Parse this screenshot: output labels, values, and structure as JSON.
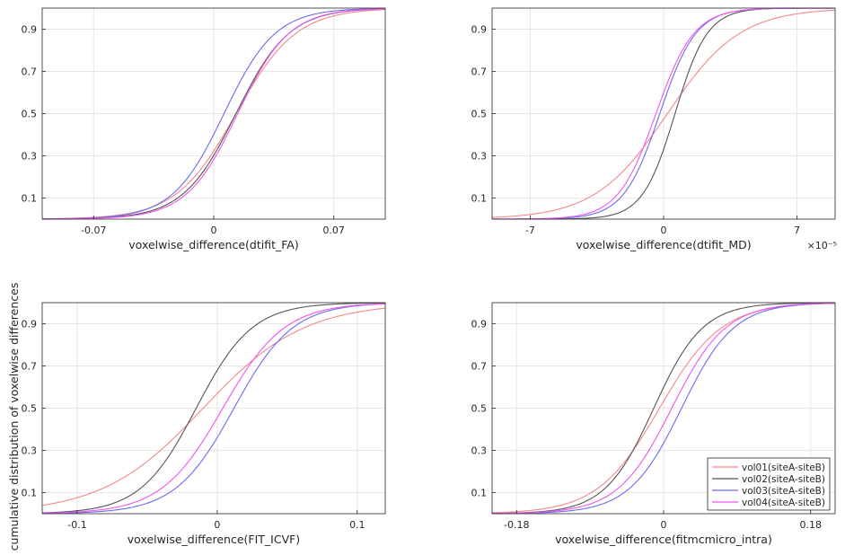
{
  "figure": {
    "ylabel": "cumulative distribution of voxelwise differences"
  },
  "legend": {
    "placement": "bottom-right of lower-right panel",
    "entries": [
      {
        "label": "vol01(siteA-siteB)",
        "color": "#f08a8a"
      },
      {
        "label": "vol02(siteA-siteB)",
        "color": "#555555"
      },
      {
        "label": "vol03(siteA-siteB)",
        "color": "#6b6bf0"
      },
      {
        "label": "vol04(siteA-siteB)",
        "color": "#ee55ee"
      }
    ]
  },
  "chart_data": [
    {
      "type": "line",
      "xlabel": "voxelwise_difference(dtifit_FA)",
      "exponent": "",
      "xlim": [
        -0.1,
        0.1
      ],
      "ylim": [
        0,
        1
      ],
      "xticks": [
        -0.07,
        0,
        0.07
      ],
      "xtick_labels": [
        "-0.07",
        "0",
        "0.07"
      ],
      "yticks": [
        0.1,
        0.3,
        0.5,
        0.7,
        0.9
      ],
      "ytick_labels": [
        "0.1",
        "0.3",
        "0.5",
        "0.7",
        "0.9"
      ],
      "grid": true,
      "series": [
        {
          "color": "#f08a8a",
          "center": 0.013,
          "scale": 0.0175
        },
        {
          "color": "#555555",
          "center": 0.013,
          "scale": 0.0155
        },
        {
          "color": "#6b6bf0",
          "center": 0.006,
          "scale": 0.015
        },
        {
          "color": "#ee55ee",
          "center": 0.014,
          "scale": 0.015
        }
      ]
    },
    {
      "type": "line",
      "xlabel": "voxelwise_difference(dtifit_MD)",
      "exponent": "×10⁻⁵",
      "xlim": [
        -9,
        9
      ],
      "ylim": [
        0,
        1
      ],
      "xticks": [
        -7,
        0,
        7
      ],
      "xtick_labels": [
        "-7",
        "0",
        "7"
      ],
      "yticks": [
        0.1,
        0.3,
        0.5,
        0.7,
        0.9
      ],
      "ytick_labels": [
        "0.1",
        "0.3",
        "0.5",
        "0.7",
        "0.9"
      ],
      "grid": true,
      "series": [
        {
          "color": "#f08a8a",
          "center": 0.2,
          "scale": 1.9
        },
        {
          "color": "#555555",
          "center": 0.6,
          "scale": 0.85
        },
        {
          "color": "#6b6bf0",
          "center": -0.2,
          "scale": 0.95
        },
        {
          "color": "#ee55ee",
          "center": -0.4,
          "scale": 1.0
        }
      ]
    },
    {
      "type": "line",
      "xlabel": "voxelwise_difference(FIT_ICVF)",
      "exponent": "",
      "xlim": [
        -0.125,
        0.12
      ],
      "ylim": [
        0,
        1
      ],
      "xticks": [
        -0.1,
        0,
        0.1
      ],
      "xtick_labels": [
        "-0.1",
        "0",
        "0.1"
      ],
      "yticks": [
        0.1,
        0.3,
        0.5,
        0.7,
        0.9
      ],
      "ytick_labels": [
        "0.1",
        "0.3",
        "0.5",
        "0.7",
        "0.9"
      ],
      "grid": true,
      "series": [
        {
          "color": "#f08a8a",
          "center": -0.01,
          "scale": 0.036
        },
        {
          "color": "#555555",
          "center": -0.015,
          "scale": 0.02
        },
        {
          "color": "#6b6bf0",
          "center": 0.012,
          "scale": 0.021
        },
        {
          "color": "#ee55ee",
          "center": 0.004,
          "scale": 0.022
        }
      ]
    },
    {
      "type": "line",
      "xlabel": "voxelwise_difference(fitmcmicro_intra)",
      "exponent": "",
      "xlim": [
        -0.21,
        0.21
      ],
      "ylim": [
        0,
        1
      ],
      "xticks": [
        -0.18,
        0,
        0.18
      ],
      "xtick_labels": [
        "-0.18",
        "0",
        "0.18"
      ],
      "yticks": [
        0.1,
        0.3,
        0.5,
        0.7,
        0.9
      ],
      "ytick_labels": [
        "0.1",
        "0.3",
        "0.5",
        "0.7",
        "0.9"
      ],
      "grid": true,
      "series": [
        {
          "color": "#f08a8a",
          "center": -0.005,
          "scale": 0.038
        },
        {
          "color": "#555555",
          "center": -0.012,
          "scale": 0.03
        },
        {
          "color": "#6b6bf0",
          "center": 0.022,
          "scale": 0.032
        },
        {
          "color": "#ee55ee",
          "center": 0.01,
          "scale": 0.033
        }
      ]
    }
  ]
}
